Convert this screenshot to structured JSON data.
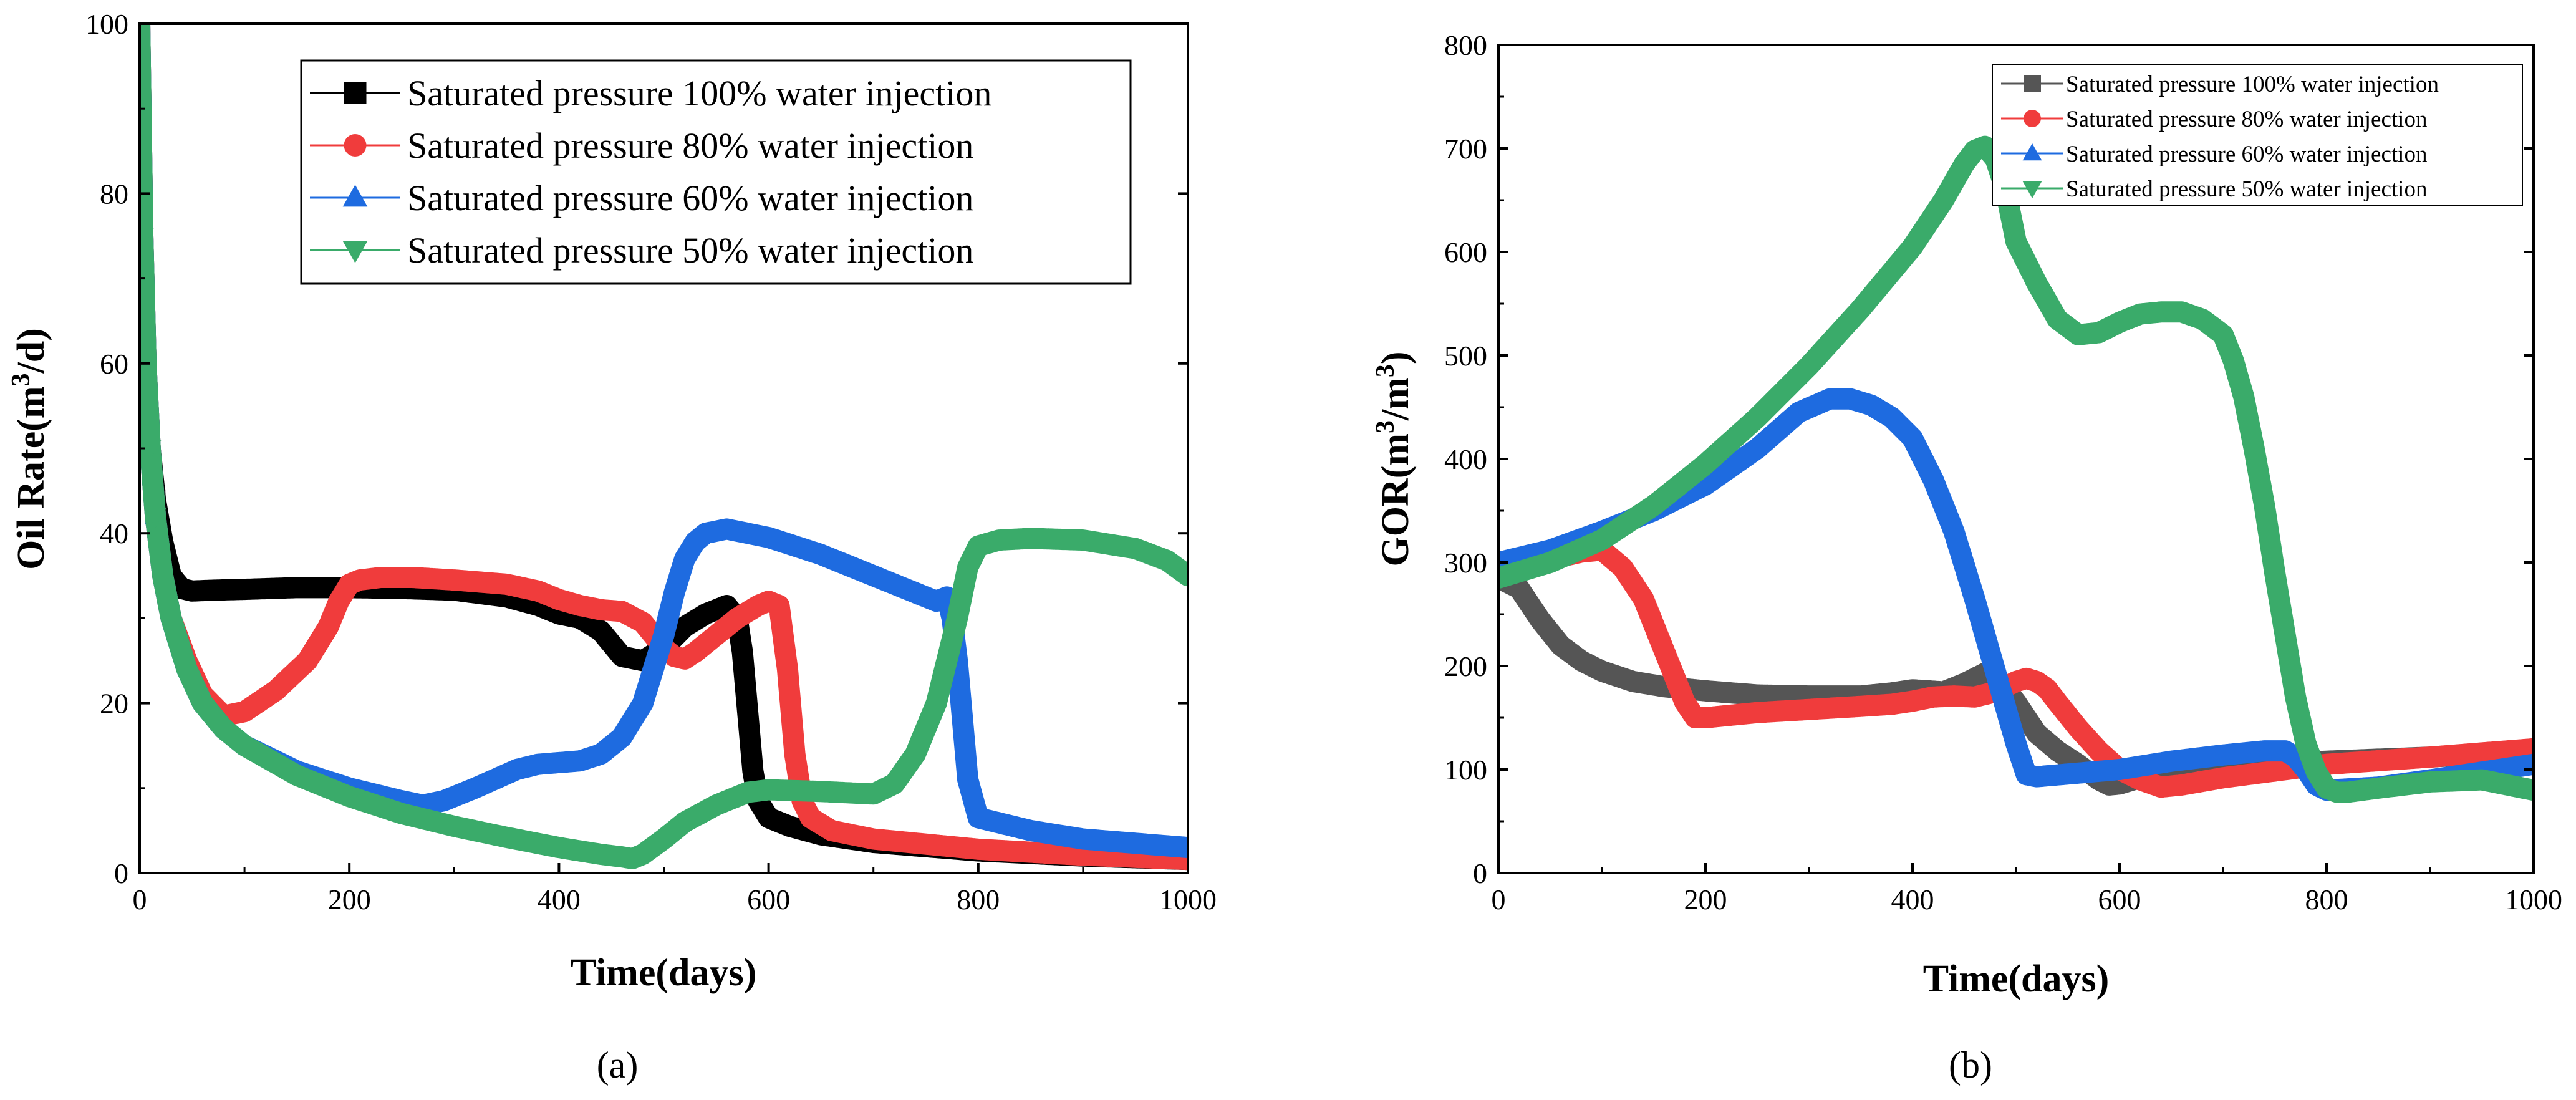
{
  "figure": {
    "panel_labels": [
      "(a)",
      "(b)"
    ]
  },
  "chart_data": [
    {
      "type": "line",
      "panel_label": "(a)",
      "title": "",
      "xlabel": "Time(days)",
      "ylabel": "Oil Rate(m³/d)",
      "ylabel_base": "Oil Rate(m",
      "ylabel_sup": "3",
      "ylabel_tail": "/d)",
      "xlim": [
        0,
        1000
      ],
      "ylim": [
        0,
        100
      ],
      "xticks": [
        0,
        200,
        400,
        600,
        800,
        1000
      ],
      "yticks": [
        0,
        20,
        40,
        60,
        80,
        100
      ],
      "legend_position": "top-right",
      "series": [
        {
          "name": "Saturated pressure 100% water injection",
          "color": "#000000",
          "marker": "square",
          "x": [
            0,
            3,
            6,
            10,
            15,
            22,
            30,
            40,
            50,
            70,
            100,
            150,
            200,
            250,
            300,
            350,
            380,
            400,
            420,
            440,
            460,
            480,
            500,
            520,
            540,
            560,
            570,
            575,
            580,
            585,
            590,
            600,
            620,
            650,
            700,
            800,
            900,
            1000
          ],
          "y": [
            100,
            75,
            60,
            50,
            44,
            39,
            35,
            33.5,
            33.2,
            33.3,
            33.4,
            33.6,
            33.6,
            33.5,
            33.3,
            32.5,
            31.5,
            30.5,
            30,
            28.5,
            25.5,
            25,
            26.5,
            29,
            30.5,
            31.5,
            30,
            26,
            19,
            12,
            8.5,
            6.5,
            5.5,
            4.5,
            3.6,
            2.6,
            2,
            1.6
          ]
        },
        {
          "name": "Saturated pressure 80% water injection",
          "color": "#f03c3c",
          "marker": "circle",
          "x": [
            0,
            3,
            6,
            10,
            15,
            22,
            30,
            45,
            60,
            80,
            100,
            130,
            160,
            180,
            190,
            200,
            210,
            230,
            260,
            300,
            350,
            380,
            400,
            420,
            440,
            460,
            480,
            500,
            510,
            520,
            530,
            550,
            570,
            590,
            600,
            610,
            618,
            625,
            632,
            640,
            660,
            700,
            800,
            900,
            1000
          ],
          "y": [
            100,
            75,
            60,
            50,
            42,
            35,
            30,
            25,
            21,
            18.5,
            19,
            21.5,
            25,
            29,
            32,
            34,
            34.5,
            34.8,
            34.8,
            34.5,
            34,
            33.2,
            32.2,
            31.5,
            31,
            30.8,
            29.5,
            26.5,
            25.5,
            25.2,
            26,
            28,
            30,
            31.5,
            32,
            31.5,
            24,
            14,
            8.5,
            6.5,
            5,
            4,
            2.8,
            2.1,
            1.6
          ]
        },
        {
          "name": "Saturated pressure 60% water injection",
          "color": "#1e6be0",
          "marker": "triangle-up",
          "x": [
            0,
            3,
            6,
            10,
            15,
            22,
            30,
            45,
            60,
            80,
            100,
            150,
            200,
            250,
            270,
            290,
            320,
            360,
            380,
            400,
            420,
            440,
            460,
            480,
            500,
            510,
            520,
            530,
            540,
            560,
            600,
            650,
            700,
            740,
            760,
            770,
            775,
            780,
            785,
            790,
            800,
            850,
            900,
            1000
          ],
          "y": [
            100,
            75,
            60,
            50,
            42,
            35,
            30,
            24,
            20,
            17,
            15,
            12,
            10,
            8.5,
            8,
            8.5,
            10,
            12.2,
            12.8,
            13,
            13.2,
            14,
            16,
            20,
            28,
            33,
            37,
            39,
            40,
            40.5,
            39.5,
            37.5,
            35,
            33,
            32,
            32.5,
            30,
            25,
            18,
            11,
            6.5,
            5,
            4,
            3
          ]
        },
        {
          "name": "Saturated pressure 50% water injection",
          "color": "#3aab6a",
          "marker": "triangle-down",
          "x": [
            0,
            3,
            6,
            10,
            15,
            22,
            30,
            45,
            60,
            80,
            100,
            150,
            200,
            250,
            300,
            350,
            400,
            440,
            460,
            470,
            480,
            500,
            520,
            550,
            580,
            600,
            650,
            700,
            720,
            740,
            760,
            770,
            780,
            790,
            800,
            820,
            850,
            900,
            950,
            980,
            1000
          ],
          "y": [
            100,
            75,
            60,
            50,
            42,
            35,
            30,
            24,
            20,
            17,
            15,
            11.5,
            9,
            7,
            5.5,
            4.2,
            3,
            2.2,
            1.9,
            1.7,
            2.2,
            4,
            6,
            8,
            9.5,
            9.8,
            9.6,
            9.3,
            10.5,
            14,
            20,
            25,
            30,
            36,
            38.5,
            39.2,
            39.4,
            39.2,
            38.2,
            36.8,
            35
          ]
        }
      ]
    },
    {
      "type": "line",
      "panel_label": "(b)",
      "title": "",
      "xlabel": "Time(days)",
      "ylabel": "GOR(m³/m³)",
      "ylabel_base": "GOR(m",
      "ylabel_sup": "3",
      "ylabel_mid": "/m",
      "ylabel_sup2": "3",
      "ylabel_tail": ")",
      "xlim": [
        0,
        1000
      ],
      "ylim": [
        0,
        800
      ],
      "xticks": [
        0,
        200,
        400,
        600,
        800,
        1000
      ],
      "yticks": [
        0,
        100,
        200,
        300,
        400,
        500,
        600,
        700,
        800
      ],
      "legend_position": "top-right",
      "series": [
        {
          "name": "Saturated pressure 100% water injection",
          "color": "#555555",
          "marker": "square",
          "x": [
            0,
            20,
            40,
            60,
            80,
            100,
            130,
            160,
            200,
            250,
            300,
            350,
            380,
            400,
            430,
            450,
            470,
            480,
            500,
            520,
            540,
            560,
            580,
            590,
            600,
            620,
            650,
            700,
            800,
            900,
            1000
          ],
          "y": [
            285,
            275,
            245,
            220,
            205,
            195,
            185,
            180,
            176,
            172,
            171,
            171,
            174,
            177,
            175,
            183,
            193,
            190,
            165,
            135,
            118,
            105,
            90,
            85,
            86,
            92,
            98,
            103,
            108,
            112,
            118
          ]
        },
        {
          "name": "Saturated pressure 80% water injection",
          "color": "#f03c3c",
          "marker": "circle",
          "x": [
            0,
            20,
            50,
            80,
            100,
            120,
            140,
            160,
            180,
            190,
            200,
            250,
            300,
            350,
            380,
            400,
            420,
            440,
            460,
            480,
            500,
            510,
            520,
            530,
            540,
            560,
            580,
            600,
            620,
            640,
            660,
            700,
            800,
            900,
            1000
          ],
          "y": [
            290,
            295,
            303,
            310,
            312,
            295,
            265,
            215,
            165,
            150,
            150,
            155,
            158,
            161,
            163,
            166,
            170,
            171,
            170,
            175,
            185,
            188,
            185,
            178,
            165,
            140,
            118,
            100,
            90,
            83,
            85,
            92,
            105,
            112,
            120
          ]
        },
        {
          "name": "Saturated pressure 60% water injection",
          "color": "#1e6be0",
          "marker": "triangle-up",
          "x": [
            0,
            50,
            100,
            150,
            200,
            250,
            290,
            320,
            340,
            360,
            380,
            400,
            420,
            440,
            460,
            470,
            480,
            490,
            500,
            510,
            520,
            600,
            650,
            700,
            740,
            760,
            770,
            780,
            790,
            800,
            850,
            900,
            1000
          ],
          "y": [
            300,
            312,
            330,
            350,
            375,
            410,
            445,
            458,
            458,
            452,
            440,
            420,
            380,
            330,
            265,
            230,
            195,
            160,
            125,
            95,
            93,
            100,
            108,
            114,
            118,
            118,
            112,
            100,
            85,
            80,
            83,
            90,
            105
          ]
        },
        {
          "name": "Saturated pressure 50% water injection",
          "color": "#3aab6a",
          "marker": "triangle-down",
          "x": [
            0,
            50,
            100,
            150,
            200,
            250,
            300,
            350,
            400,
            430,
            450,
            460,
            470,
            480,
            490,
            500,
            520,
            540,
            560,
            580,
            600,
            620,
            640,
            660,
            680,
            700,
            710,
            720,
            730,
            740,
            750,
            760,
            770,
            780,
            790,
            800,
            810,
            820,
            850,
            900,
            950,
            1000
          ],
          "y": [
            285,
            300,
            322,
            355,
            395,
            440,
            490,
            545,
            605,
            650,
            685,
            698,
            702,
            690,
            660,
            610,
            570,
            535,
            520,
            522,
            532,
            540,
            542,
            542,
            535,
            520,
            495,
            460,
            410,
            355,
            290,
            230,
            170,
            125,
            98,
            82,
            78,
            78,
            82,
            88,
            90,
            80
          ]
        }
      ]
    }
  ]
}
